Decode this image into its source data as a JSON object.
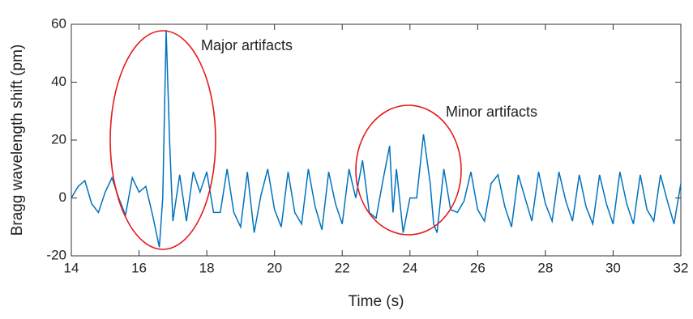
{
  "chart_data": {
    "type": "line",
    "xlabel": "Time (s)",
    "ylabel": "Bragg wavelength shift (pm)",
    "annotations": [
      "Major artifacts",
      "Minor artifacts"
    ],
    "color": "#0072bd",
    "annotation_color": "#e41a1c",
    "grid": false,
    "xlim": [
      14,
      32
    ],
    "xticks": [
      14,
      16,
      18,
      20,
      22,
      24,
      26,
      28,
      30,
      32
    ],
    "ylim": [
      -20,
      60
    ],
    "yticks": [
      -20,
      0,
      20,
      40,
      60
    ],
    "x": [
      14.0,
      14.2,
      14.4,
      14.6,
      14.8,
      15.0,
      15.2,
      15.4,
      15.6,
      15.8,
      16.0,
      16.2,
      16.4,
      16.6,
      16.7,
      16.8,
      16.9,
      17.0,
      17.2,
      17.4,
      17.6,
      17.8,
      18.0,
      18.2,
      18.4,
      18.6,
      18.8,
      19.0,
      19.2,
      19.4,
      19.6,
      19.8,
      20.0,
      20.2,
      20.4,
      20.6,
      20.8,
      21.0,
      21.2,
      21.4,
      21.6,
      21.8,
      22.0,
      22.2,
      22.4,
      22.6,
      22.8,
      23.0,
      23.2,
      23.4,
      23.5,
      23.6,
      23.8,
      24.0,
      24.2,
      24.4,
      24.6,
      24.7,
      24.8,
      25.0,
      25.2,
      25.4,
      25.6,
      25.8,
      26.0,
      26.2,
      26.4,
      26.6,
      26.8,
      27.0,
      27.2,
      27.4,
      27.6,
      27.8,
      28.0,
      28.2,
      28.4,
      28.6,
      28.8,
      29.0,
      29.2,
      29.4,
      29.6,
      29.8,
      30.0,
      30.2,
      30.4,
      30.6,
      30.8,
      31.0,
      31.2,
      31.4,
      31.6,
      31.8,
      32.0
    ],
    "values": [
      0,
      4,
      6,
      -2,
      -5,
      2,
      7,
      0,
      -6,
      7,
      2,
      4,
      -6,
      -17,
      0,
      58,
      20,
      -8,
      8,
      -8,
      9,
      2,
      9,
      -5,
      -5,
      10,
      -5,
      -10,
      9,
      -12,
      1,
      10,
      -4,
      -10,
      9,
      -5,
      -9,
      10,
      -3,
      -11,
      9,
      -2,
      -9,
      10,
      0,
      13,
      -5,
      -7,
      6,
      18,
      -5,
      10,
      -12,
      0,
      0,
      22,
      5,
      -9,
      -12,
      10,
      -4,
      -5,
      -1,
      9,
      -4,
      -8,
      5,
      8,
      -3,
      -10,
      8,
      0,
      -8,
      9,
      -2,
      -8,
      9,
      -1,
      -8,
      8,
      -3,
      -9,
      8,
      -2,
      -9,
      9,
      -2,
      -9,
      8,
      -4,
      -8,
      8,
      -1,
      -9,
      5
    ]
  }
}
